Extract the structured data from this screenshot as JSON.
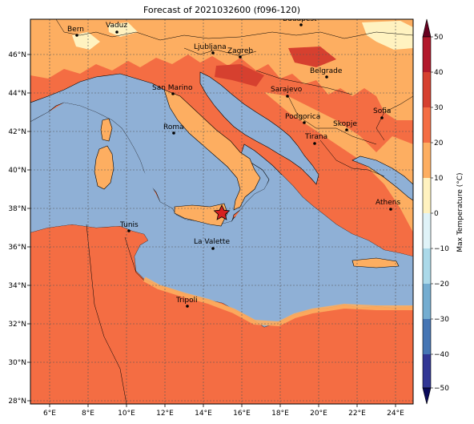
{
  "title": "Forecast of 2021032600 (f096-120)",
  "lon_ticks": [
    "6°E",
    "8°E",
    "10°E",
    "12°E",
    "14°E",
    "16°E",
    "18°E",
    "20°E",
    "22°E",
    "24°E"
  ],
  "lat_ticks": [
    "46°N",
    "44°N",
    "42°N",
    "40°N",
    "38°N",
    "36°N",
    "34°N",
    "32°N",
    "30°N",
    "28°N"
  ],
  "colorbar": {
    "label": "Max Temperature (°C)",
    "ticks": [
      "50",
      "40",
      "30",
      "20",
      "10",
      "0",
      "−10",
      "−20",
      "−30",
      "−40",
      "−50"
    ],
    "colors": [
      "#67001f",
      "#b2182b",
      "#d6402f",
      "#f46d43",
      "#fdae61",
      "#fff2c0",
      "#e0f3f8",
      "#abd9e9",
      "#74add1",
      "#4575b4",
      "#313695"
    ]
  },
  "colors": {
    "sea": "#8fb0d6",
    "land_warm": "#f46d43",
    "land_mid": "#fdae61",
    "land_cool": "#fff2c0",
    "land_hot": "#d6402f"
  },
  "cities": [
    {
      "name": "Bern"
    },
    {
      "name": "Vaduz"
    },
    {
      "name": "Budapest"
    },
    {
      "name": "Ljubljana"
    },
    {
      "name": "Zagreb"
    },
    {
      "name": "San Marino"
    },
    {
      "name": "Belgrade"
    },
    {
      "name": "Sarajevo"
    },
    {
      "name": "Sofia"
    },
    {
      "name": "Podgorica"
    },
    {
      "name": "Skopje"
    },
    {
      "name": "Roma"
    },
    {
      "name": "Tirana"
    },
    {
      "name": "Athens"
    },
    {
      "name": "Tunis"
    },
    {
      "name": "La Valette"
    },
    {
      "name": "Tripoli"
    }
  ],
  "marker": "star"
}
